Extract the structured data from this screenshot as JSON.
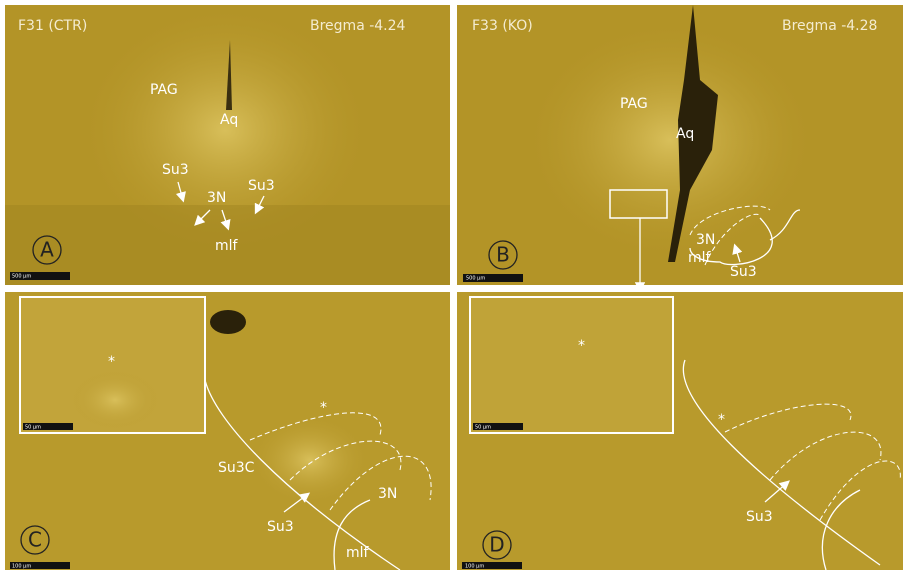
{
  "panels": [
    {
      "letter": "A",
      "header_left": "F31 (CTR)",
      "header_right": "Bregma -4.24",
      "labels": [
        "PAG",
        "Aq",
        "Su3",
        "3N",
        "Su3",
        "mlf"
      ],
      "scale_bar": "500 µm"
    },
    {
      "letter": "B",
      "header_left": "F33 (KO)",
      "header_right": "Bregma -4.28",
      "labels": [
        "PAG",
        "Aq",
        "3N",
        "mlf",
        "Su3"
      ],
      "scale_bar": "500 µm"
    },
    {
      "letter": "C",
      "labels": [
        "*",
        "*",
        "Su3C",
        "3N",
        "Su3",
        "mlf"
      ],
      "inset_scale_bar": "50 µm",
      "scale_bar": "100 µm"
    },
    {
      "letter": "D",
      "labels": [
        "*",
        "*",
        "Su3"
      ],
      "inset_scale_bar": "50 µm",
      "scale_bar": "100 µm"
    }
  ]
}
